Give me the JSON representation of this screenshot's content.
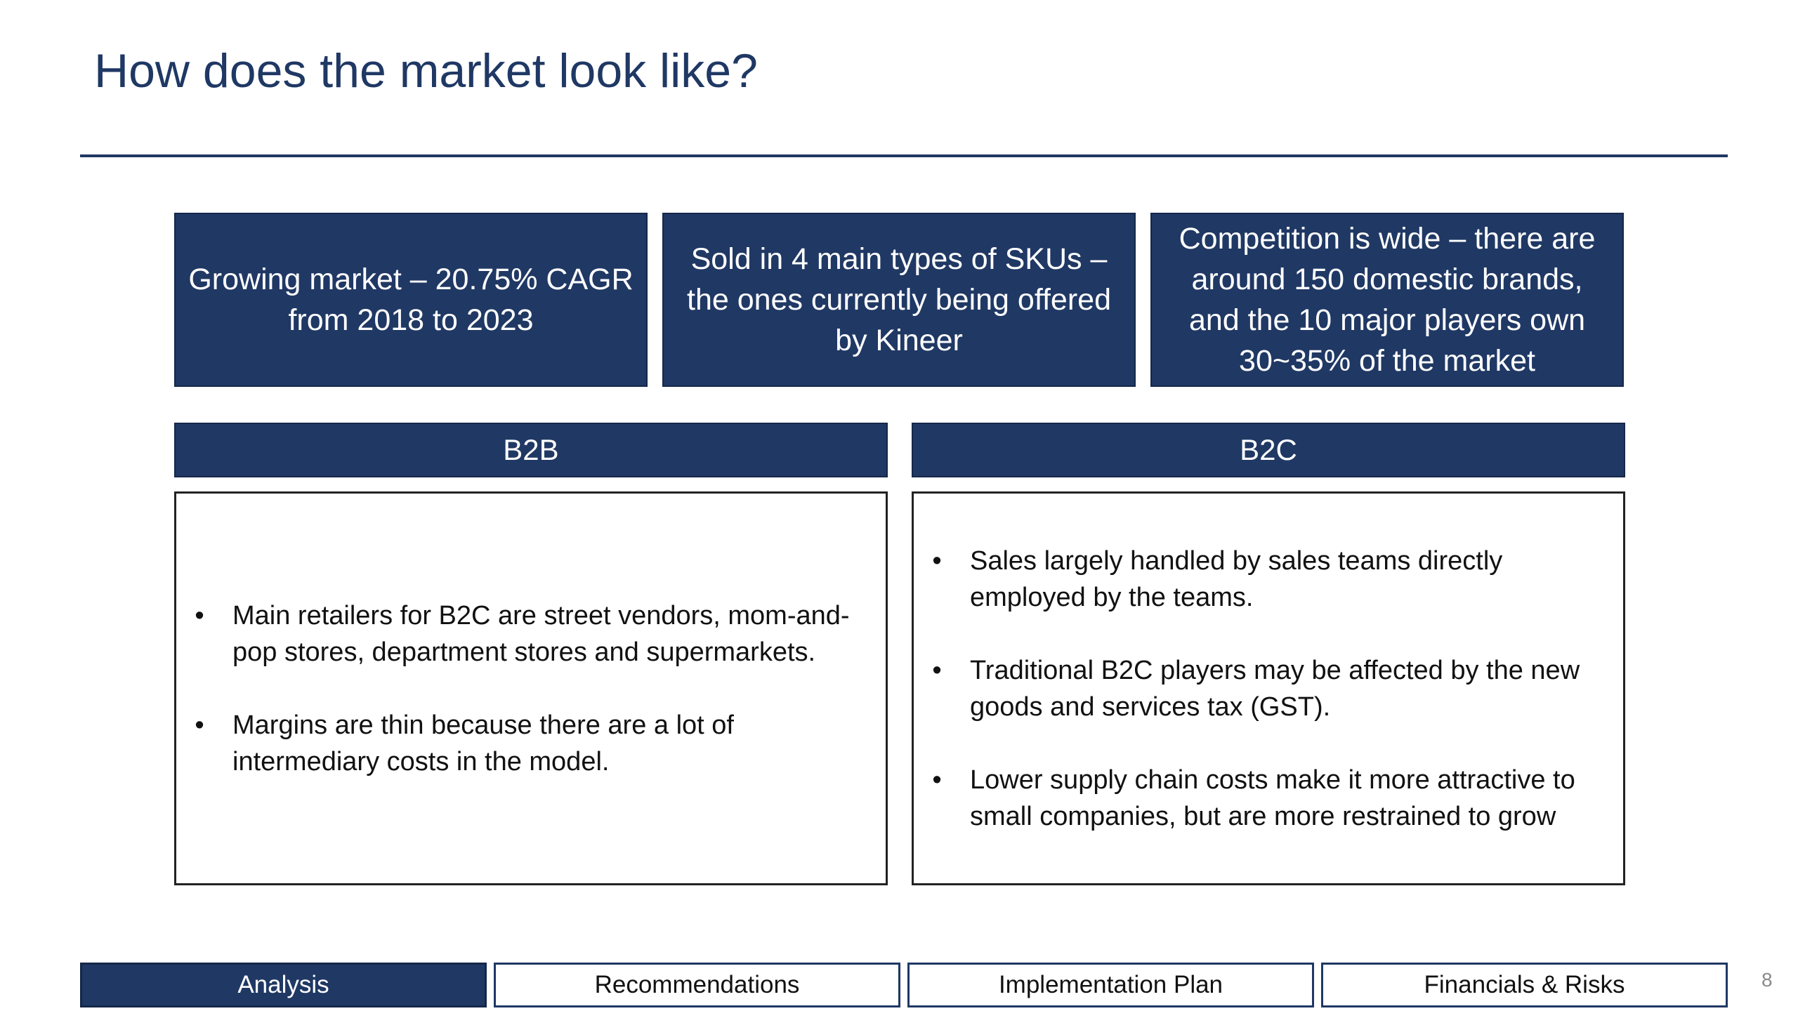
{
  "slide": {
    "title": "How does the market look like?",
    "page_number": "8"
  },
  "highlights": [
    {
      "text": "Growing market – 20.75% CAGR from 2018 to 2023"
    },
    {
      "text": "Sold in 4 main types of SKUs – the ones currently being offered by Kineer"
    },
    {
      "text": "Competition is wide – there are around 150 domestic brands, and the 10 major players own 30~35% of the market"
    }
  ],
  "segments": {
    "b2b": {
      "header": "B2B",
      "bullets": [
        "Main retailers for B2C are street vendors, mom-and-pop stores, department stores and supermarkets.",
        "Margins are thin because there are a lot of intermediary costs in the model."
      ]
    },
    "b2c": {
      "header": "B2C",
      "bullets": [
        "Sales largely handled by sales teams directly employed by the teams.",
        "Traditional B2C players may be affected by the new goods and services tax (GST).",
        "Lower supply chain costs make it more attractive to small companies, but are more restrained to grow"
      ]
    }
  },
  "bullet_symbol": "•",
  "nav": {
    "active": "Analysis",
    "items": [
      {
        "label": "Analysis"
      },
      {
        "label": "Recommendations"
      },
      {
        "label": "Implementation Plan"
      },
      {
        "label": "Financials & Risks"
      }
    ]
  },
  "colors": {
    "brand_navy": "#203864",
    "title_navy": "#1f3864"
  }
}
